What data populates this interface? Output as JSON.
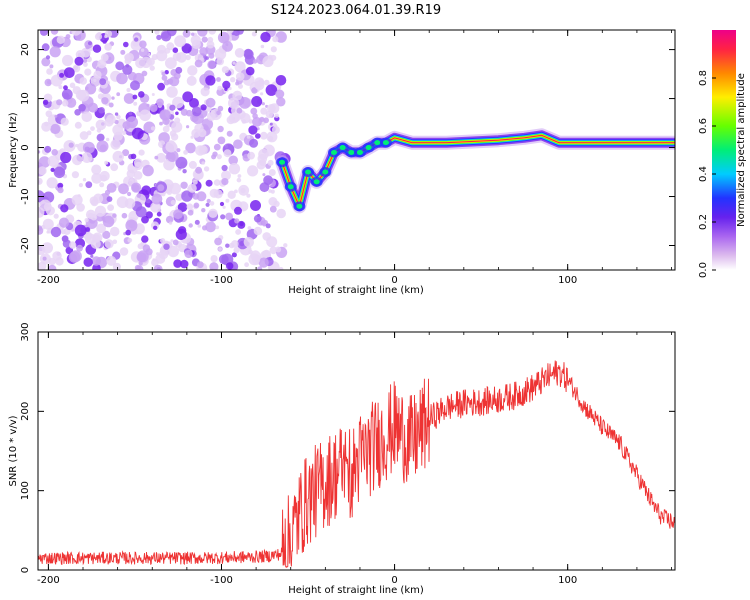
{
  "figure_title": "S124.2023.064.01.39.R19",
  "colors": {
    "snr_line": "#ee3333",
    "scatter_dots": "#7722ee",
    "colormap": [
      "#ddbbee",
      "#aa66f0",
      "#7722ee",
      "#2233ff",
      "#00ccff",
      "#00ee77",
      "#66ff00",
      "#ffee00",
      "#ff8800",
      "#ff2244",
      "#ee0088"
    ]
  },
  "chart_data": [
    {
      "type": "heatmap",
      "name": "spectrogram",
      "xlabel": "Height of straight line (km)",
      "ylabel": "Frequency (Hz)",
      "xlim": [
        -206,
        162
      ],
      "ylim": [
        -25,
        24
      ],
      "xticks": [
        -200,
        -100,
        0,
        100
      ],
      "yticks": [
        -20,
        -10,
        0,
        10,
        20
      ],
      "colorbar": {
        "label": "Normalized spectral amplitude",
        "range": [
          0.0,
          1.0
        ],
        "ticks": [
          "0.0",
          "0.2",
          "0.4",
          "0.6",
          "0.8"
        ]
      },
      "noise_region": {
        "x_from": -206,
        "x_to": -65,
        "f_from": -25,
        "f_to": 24
      },
      "ridge": [
        {
          "x": -65,
          "f": -3
        },
        {
          "x": -60,
          "f": -8
        },
        {
          "x": -55,
          "f": -12
        },
        {
          "x": -50,
          "f": -5
        },
        {
          "x": -45,
          "f": -7
        },
        {
          "x": -40,
          "f": -5
        },
        {
          "x": -35,
          "f": -1
        },
        {
          "x": -30,
          "f": 0
        },
        {
          "x": -25,
          "f": -1
        },
        {
          "x": -20,
          "f": -1
        },
        {
          "x": -15,
          "f": 0
        },
        {
          "x": -10,
          "f": 1
        },
        {
          "x": -5,
          "f": 1
        },
        {
          "x": 0,
          "f": 2
        },
        {
          "x": 10,
          "f": 1
        },
        {
          "x": 30,
          "f": 1
        },
        {
          "x": 60,
          "f": 1.5
        },
        {
          "x": 75,
          "f": 2
        },
        {
          "x": 85,
          "f": 2.5
        },
        {
          "x": 95,
          "f": 1
        },
        {
          "x": 120,
          "f": 1
        },
        {
          "x": 162,
          "f": 1
        }
      ]
    },
    {
      "type": "line",
      "name": "snr",
      "xlabel": "Height of straight line (km)",
      "ylabel": "SNR (10 * v/v)",
      "xlim": [
        -206,
        162
      ],
      "ylim": [
        0,
        300
      ],
      "xticks": [
        -200,
        -100,
        0,
        100
      ],
      "yticks": [
        0,
        100,
        200,
        300
      ],
      "series": [
        {
          "name": "SNR",
          "x": [
            -206,
            -190,
            -170,
            -150,
            -130,
            -110,
            -90,
            -75,
            -66,
            -60,
            -55,
            -50,
            -45,
            -40,
            -35,
            -30,
            -25,
            -20,
            -15,
            -10,
            -5,
            0,
            5,
            10,
            15,
            20,
            30,
            40,
            50,
            60,
            70,
            80,
            90,
            95,
            100,
            110,
            120,
            130,
            140,
            150,
            155,
            162
          ],
          "y": [
            15,
            15,
            15,
            15,
            15,
            15,
            16,
            17,
            20,
            40,
            70,
            90,
            100,
            110,
            120,
            130,
            120,
            140,
            150,
            160,
            170,
            180,
            170,
            160,
            175,
            190,
            205,
            210,
            212,
            215,
            220,
            230,
            245,
            250,
            240,
            205,
            180,
            160,
            120,
            80,
            65,
            60
          ]
        }
      ]
    }
  ]
}
